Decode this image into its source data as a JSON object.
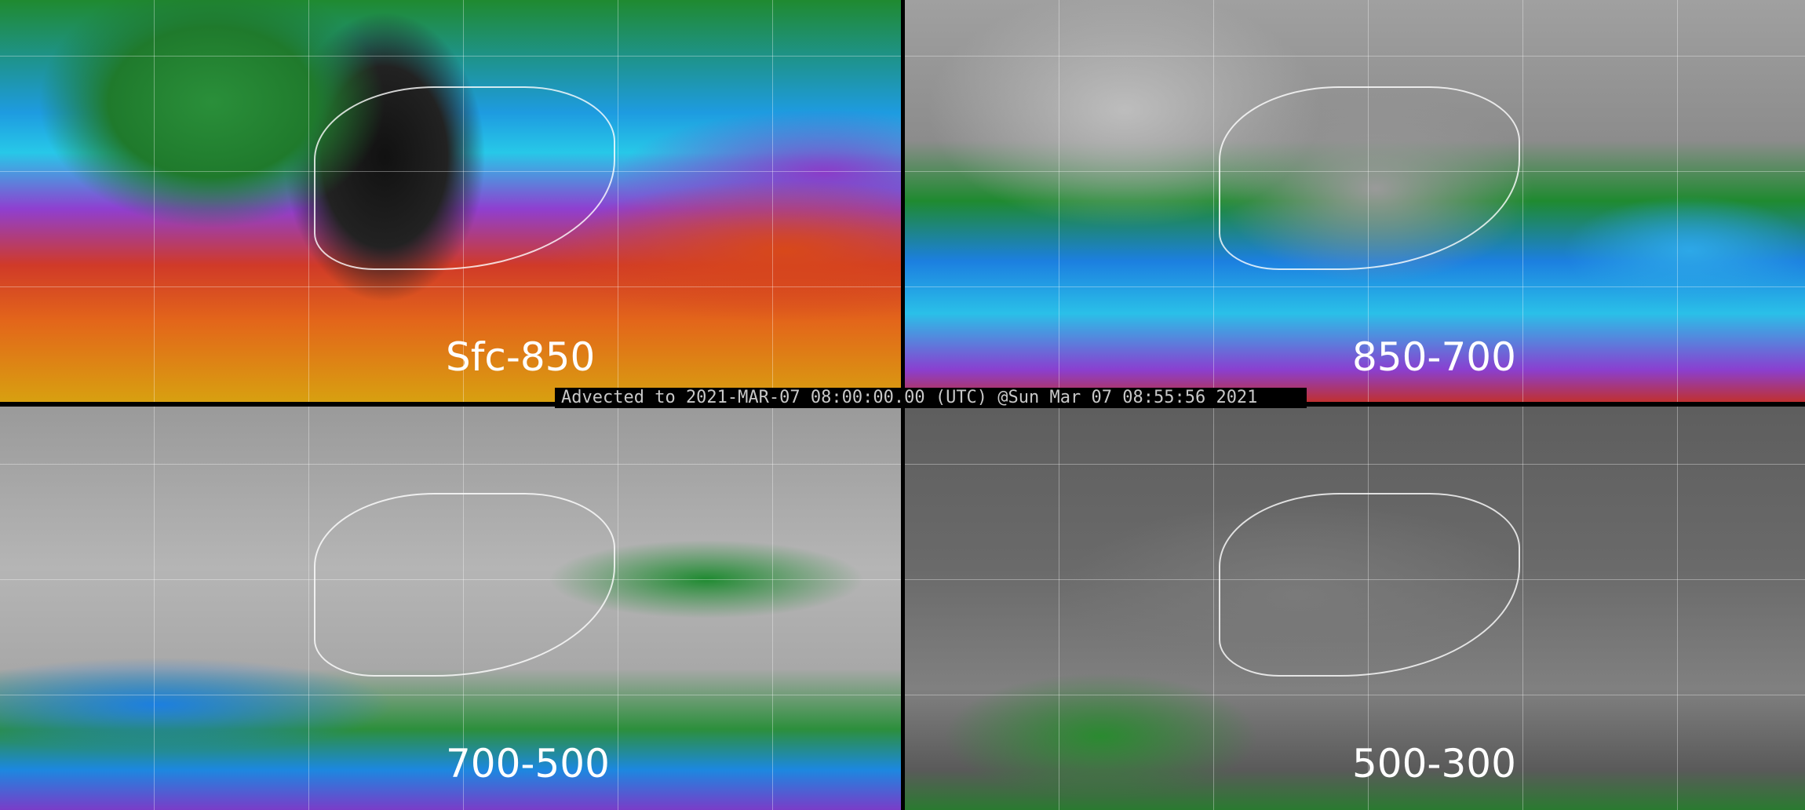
{
  "panels": [
    {
      "label": "Sfc-850"
    },
    {
      "label": "850-700"
    },
    {
      "label": "700-500"
    },
    {
      "label": "500-300"
    }
  ],
  "caption": "Advected to 2021-MAR-07 08:00:00.00 (UTC) @Sun Mar 07 08:55:56 2021"
}
